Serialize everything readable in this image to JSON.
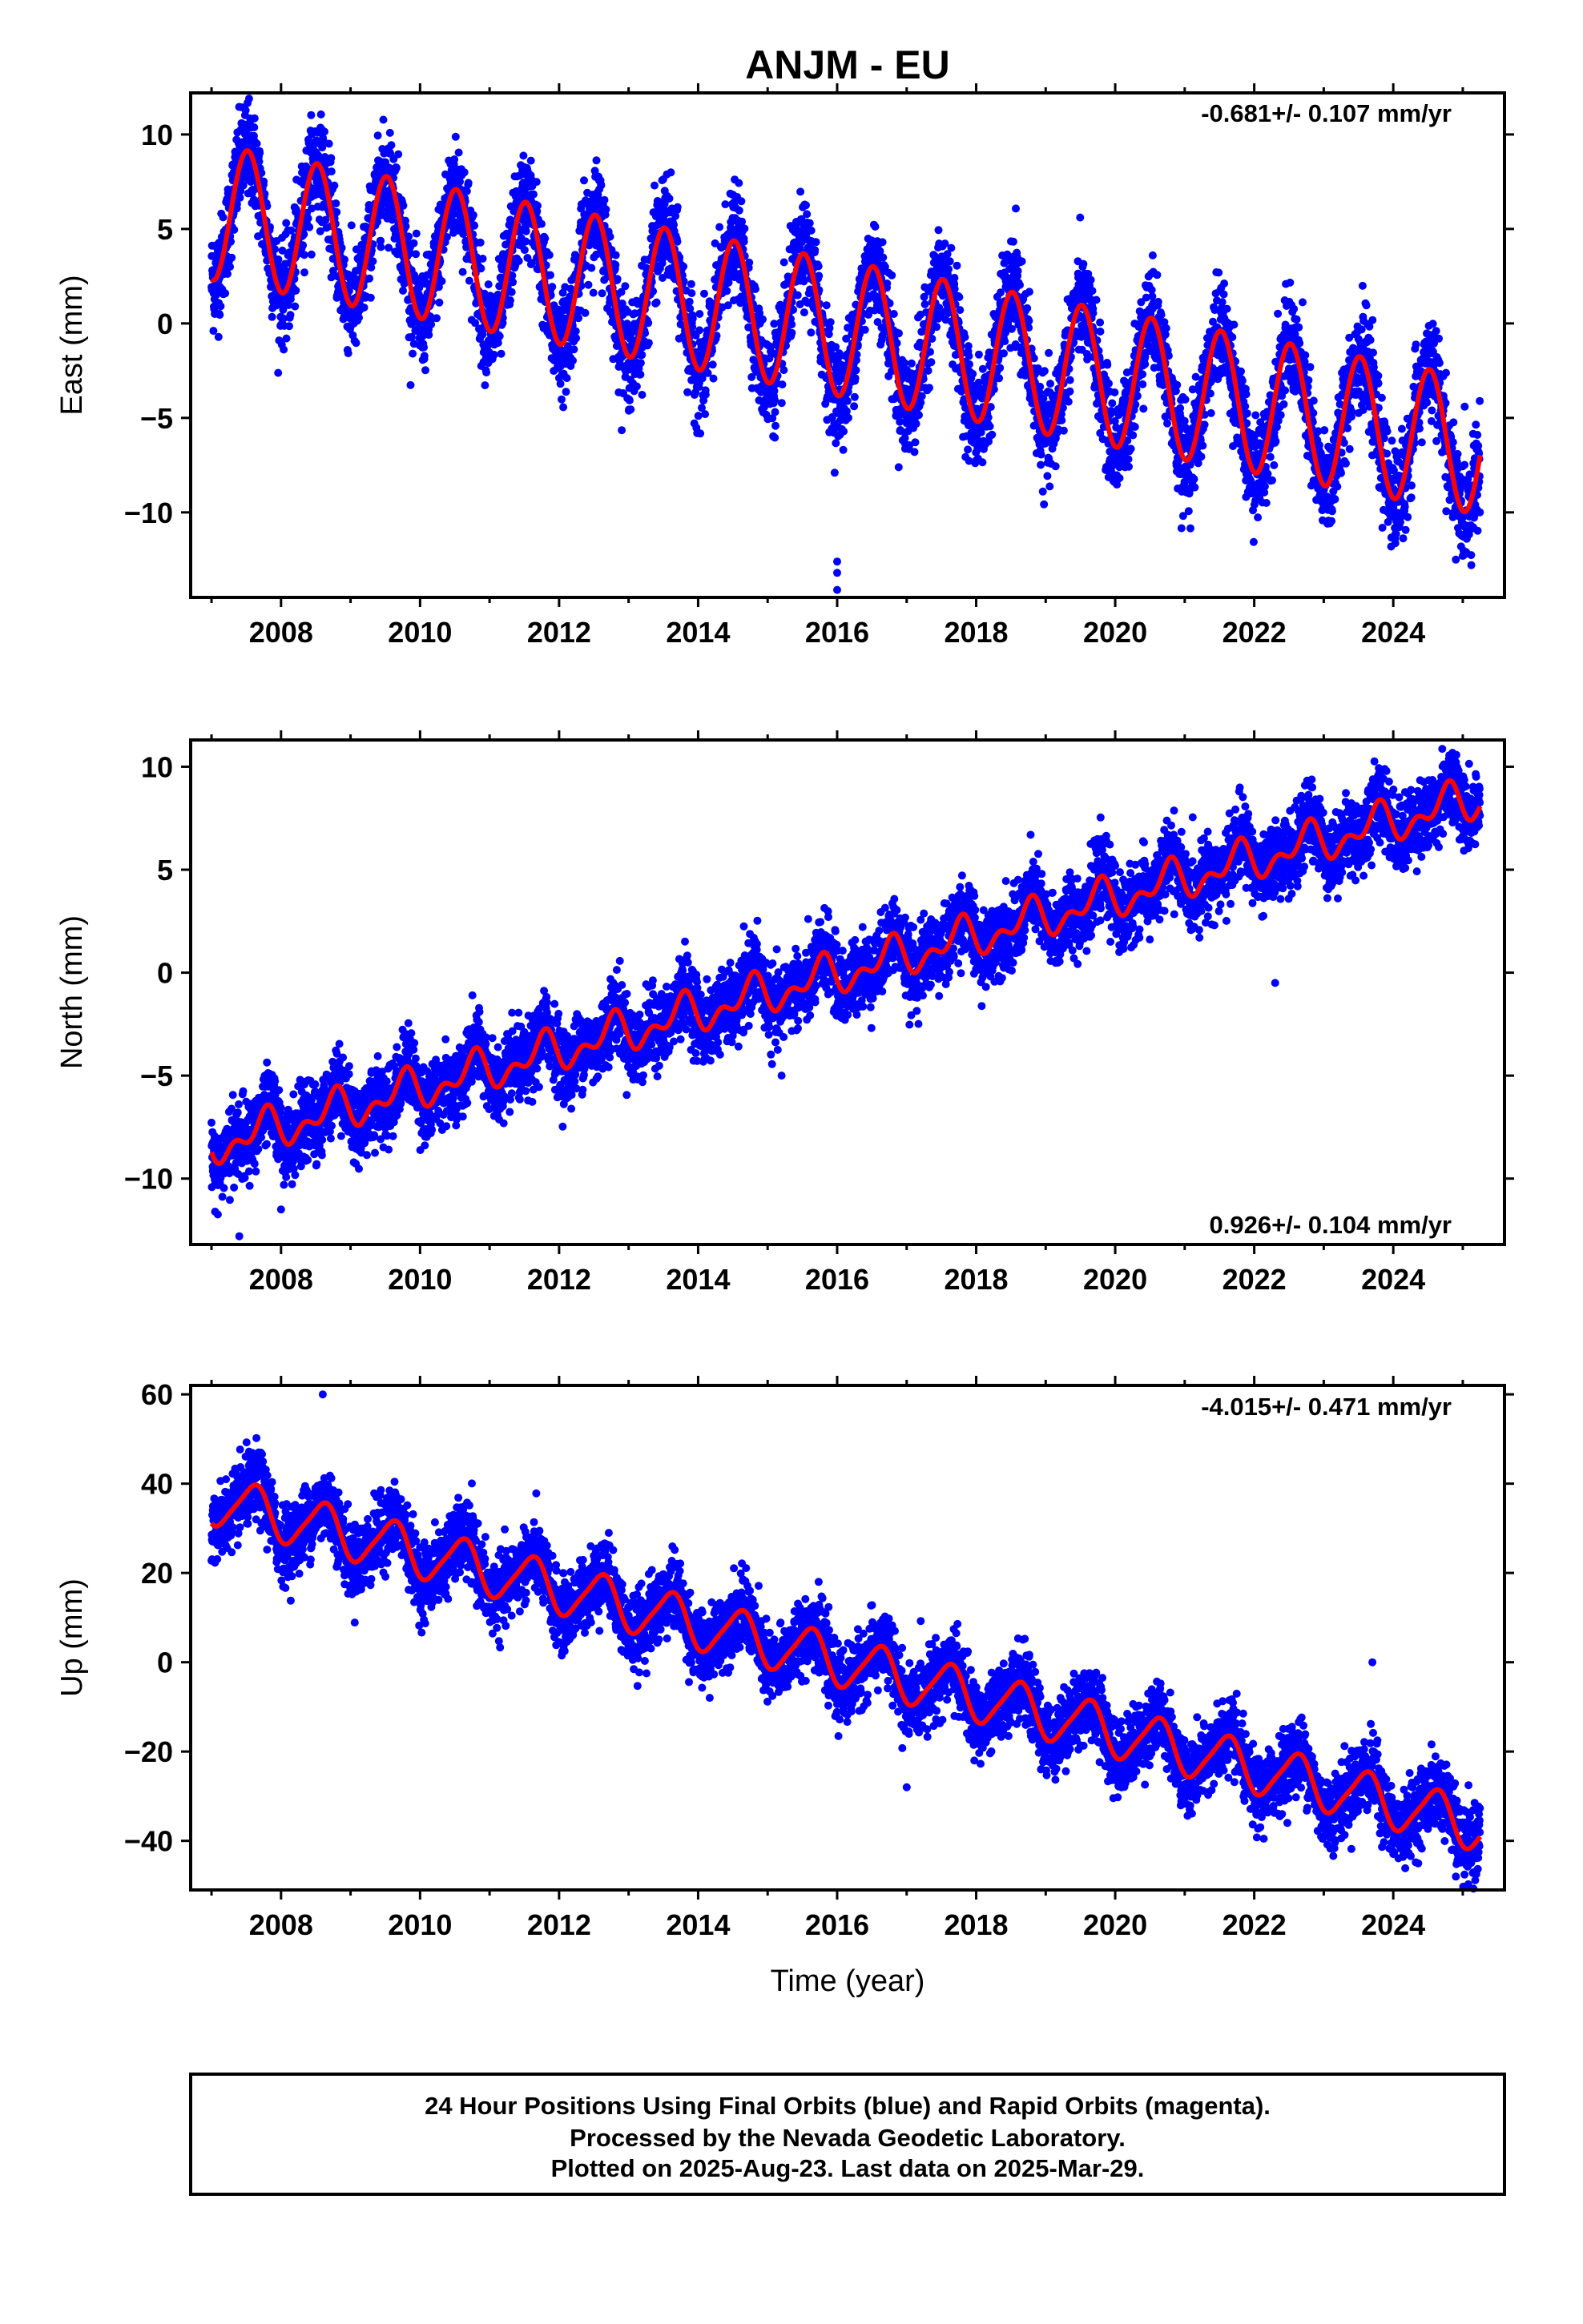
{
  "title": "ANJM - EU",
  "x_axis_label": "Time (year)",
  "footer": {
    "line1": "24 Hour Positions Using Final Orbits (blue) and Rapid Orbits (magenta).",
    "line2": "Processed by the Nevada Geodetic Laboratory.",
    "line3": "Plotted on 2025-Aug-23. Last data on 2025-Mar-29."
  },
  "colors": {
    "observations": "#0000ff",
    "model_fit": "#ff0000",
    "frame": "#000000"
  },
  "chart_data": [
    {
      "type": "scatter",
      "id": "east",
      "ylabel": "East (mm)",
      "rate_text": "-0.681+/- 0.107 mm/yr",
      "rate_position": "top-right",
      "xlim": [
        2006.7,
        2025.6
      ],
      "ylim": [
        -14.5,
        12.2
      ],
      "x_ticks": [
        "2008",
        "2010",
        "2012",
        "2014",
        "2016",
        "2018",
        "2020",
        "2022",
        "2024"
      ],
      "y_ticks": [
        "10",
        "5",
        "0",
        "−5",
        "−10"
      ],
      "y_tick_values": [
        10,
        5,
        0,
        -5,
        -10
      ],
      "grid": false,
      "fit": {
        "start": 2007.0,
        "end": 2025.25,
        "intercept": 5.9,
        "slope": -0.681,
        "amplitude": 3.6,
        "phase_year": 0.27,
        "semiannual": 0.0,
        "semiannual_phase": 0.0
      },
      "scatter": {
        "noise": 1.3,
        "amp_min": 3.6,
        "amp_max": 3.6
      },
      "outliers": [
        [
          2016.0,
          -12.6
        ],
        [
          2016.0,
          -13.2
        ],
        [
          2016.0,
          -14.1
        ],
        [
          2007.1,
          1.8
        ],
        [
          2014.1,
          -4.8
        ],
        [
          2024.9,
          -12.5
        ]
      ]
    },
    {
      "type": "scatter",
      "id": "north",
      "ylabel": "North (mm)",
      "rate_text": "0.926+/- 0.104 mm/yr",
      "rate_position": "bottom-right",
      "xlim": [
        2006.7,
        2025.6
      ],
      "ylim": [
        -13.2,
        11.3
      ],
      "x_ticks": [
        "2008",
        "2010",
        "2012",
        "2014",
        "2016",
        "2018",
        "2020",
        "2022",
        "2024"
      ],
      "y_ticks": [
        "10",
        "5",
        "0",
        "−5",
        "−10"
      ],
      "y_tick_values": [
        10,
        5,
        0,
        -5,
        -10
      ],
      "grid": false,
      "fit": {
        "start": 2007.0,
        "end": 2025.25,
        "intercept": -8.4,
        "slope": 0.926,
        "amplitude": 0.75,
        "phase_year": 0.5,
        "semiannual": 0.55,
        "semiannual_phase": 0.2
      },
      "scatter": {
        "noise": 0.9,
        "amp_min": 1.0,
        "amp_max": 1.0
      },
      "outliers": [
        [
          2007.4,
          -12.8
        ],
        [
          2008.0,
          -11.5
        ],
        [
          2022.3,
          -0.5
        ],
        [
          2015.2,
          -5.0
        ]
      ]
    },
    {
      "type": "scatter",
      "id": "up",
      "ylabel": "Up (mm)",
      "rate_text": "-4.015+/- 0.471 mm/yr",
      "rate_position": "top-right",
      "xlim": [
        2006.7,
        2025.6
      ],
      "ylim": [
        -51,
        62
      ],
      "x_ticks": [
        "2008",
        "2010",
        "2012",
        "2014",
        "2016",
        "2018",
        "2020",
        "2022",
        "2024"
      ],
      "y_ticks": [
        "60",
        "40",
        "20",
        "0",
        "−20",
        "−40"
      ],
      "y_tick_values": [
        60,
        40,
        20,
        0,
        -20,
        -40
      ],
      "grid": false,
      "fit": {
        "start": 2007.0,
        "end": 2025.25,
        "intercept": 36.5,
        "slope": -4.015,
        "amplitude": 5.5,
        "phase_year": 0.35,
        "semiannual": 1.0,
        "semiannual_phase": 0.1
      },
      "scatter": {
        "noise": 4.0,
        "amp_min": 5.0,
        "amp_max": 5.0
      },
      "outliers": [
        [
          2008.6,
          60
        ],
        [
          2023.7,
          0
        ],
        [
          2024.9,
          -48
        ],
        [
          2017.0,
          -28
        ]
      ]
    }
  ]
}
